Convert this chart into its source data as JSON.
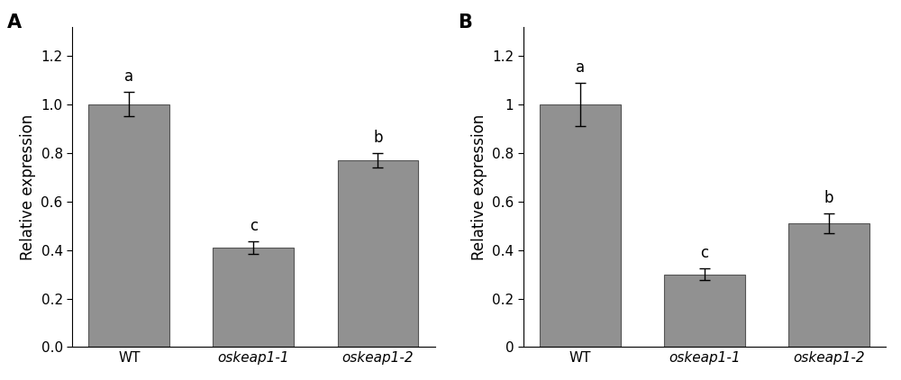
{
  "panel_A": {
    "label": "A",
    "categories": [
      "WT",
      "oskeap1-1",
      "oskeap1-2"
    ],
    "values": [
      1.0,
      0.41,
      0.77
    ],
    "errors": [
      0.05,
      0.025,
      0.03
    ],
    "sig_labels": [
      "a",
      "c",
      "b"
    ],
    "ylabel": "Relative expression",
    "ylim": [
      0,
      1.32
    ],
    "yticks": [
      0.0,
      0.2,
      0.4,
      0.6,
      0.8,
      1.0,
      1.2
    ],
    "ytick_labels": [
      "0.0",
      "0.2",
      "0.4",
      "0.6",
      "0.8",
      "1.0",
      "1.2"
    ]
  },
  "panel_B": {
    "label": "B",
    "categories": [
      "WT",
      "oskeap1-1",
      "oskeap1-2"
    ],
    "values": [
      1.0,
      0.3,
      0.51
    ],
    "errors": [
      0.09,
      0.025,
      0.04
    ],
    "sig_labels": [
      "a",
      "c",
      "b"
    ],
    "ylabel": "Relative expression",
    "ylim": [
      0,
      1.32
    ],
    "yticks": [
      0,
      0.2,
      0.4,
      0.6,
      0.8,
      1.0,
      1.2
    ],
    "ytick_labels": [
      "0",
      "0.2",
      "0.4",
      "0.6",
      "0.8",
      "1",
      "1.2"
    ]
  },
  "bar_color": "#919191",
  "bar_edgecolor": "#555555",
  "bar_width": 0.65,
  "fig_width": 10.0,
  "fig_height": 4.22,
  "dpi": 100,
  "tick_fontsize": 11,
  "ylabel_fontsize": 12,
  "sig_fontsize": 12,
  "panel_label_fontsize": 15,
  "background_color": "#ffffff",
  "italic_xtick_indices": [
    1,
    2
  ]
}
